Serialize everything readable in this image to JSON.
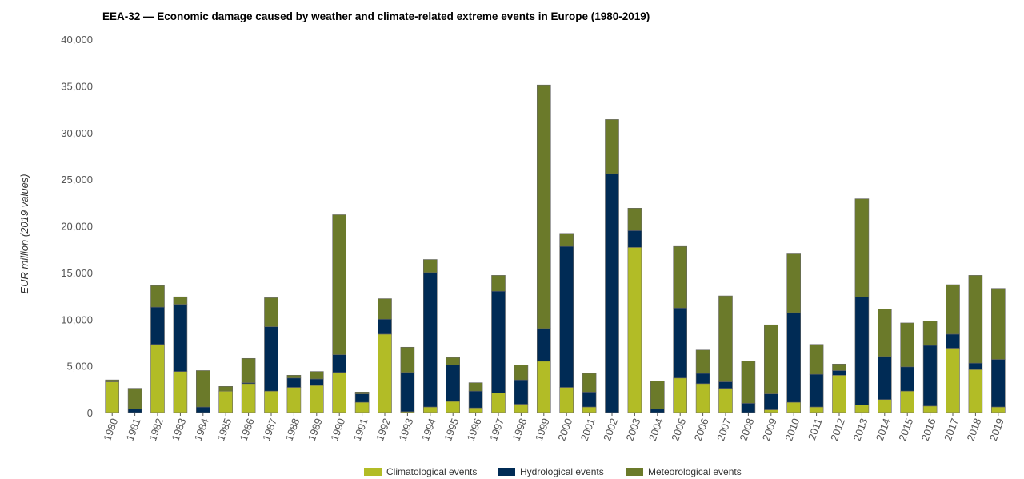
{
  "chart_data": {
    "type": "bar",
    "stacked": true,
    "title": "EEA-32 — Economic damage caused by weather and climate-related extreme events in Europe (1980-2019)",
    "xlabel": "",
    "ylabel": "EUR million (2019 values)",
    "ylim": [
      0,
      40000
    ],
    "yticks": [
      0,
      5000,
      10000,
      15000,
      20000,
      25000,
      30000,
      35000,
      40000
    ],
    "ytick_labels": [
      "0",
      "5,000",
      "10,000",
      "15,000",
      "20,000",
      "25,000",
      "30,000",
      "35,000",
      "40,000"
    ],
    "categories": [
      "1980",
      "1981",
      "1982",
      "1983",
      "1984",
      "1985",
      "1986",
      "1987",
      "1988",
      "1989",
      "1990",
      "1991",
      "1992",
      "1993",
      "1994",
      "1995",
      "1996",
      "1997",
      "1998",
      "1999",
      "2000",
      "2001",
      "2002",
      "2003",
      "2004",
      "2005",
      "2006",
      "2007",
      "2008",
      "2009",
      "2010",
      "2011",
      "2012",
      "2013",
      "2014",
      "2015",
      "2016",
      "2017",
      "2018",
      "2019"
    ],
    "series": [
      {
        "name": "Climatological events",
        "color": "#b2bc26",
        "values": [
          3300,
          0,
          7300,
          4400,
          0,
          2300,
          3100,
          2300,
          2700,
          2900,
          4300,
          1100,
          8400,
          100,
          600,
          1200,
          500,
          2100,
          900,
          5500,
          2700,
          600,
          0,
          17700,
          0,
          3700,
          3100,
          2600,
          0,
          300,
          1100,
          600,
          4000,
          800,
          1400,
          2300,
          700,
          6900,
          4600,
          600
        ]
      },
      {
        "name": "Hydrological events",
        "color": "#002b55",
        "values": [
          0,
          400,
          4000,
          7200,
          600,
          0,
          100,
          6900,
          1000,
          700,
          1900,
          900,
          1600,
          4200,
          14400,
          3900,
          1800,
          10900,
          2600,
          3500,
          15100,
          1600,
          25600,
          1800,
          400,
          7500,
          1100,
          700,
          1000,
          1700,
          9600,
          3500,
          500,
          11600,
          4600,
          2600,
          6500,
          1500,
          700,
          5100
        ]
      },
      {
        "name": "Meteorological events",
        "color": "#6b7a2a",
        "values": [
          200,
          2200,
          2300,
          800,
          3900,
          500,
          2600,
          3100,
          300,
          800,
          15000,
          200,
          2200,
          2700,
          1400,
          800,
          900,
          1700,
          1600,
          26100,
          1400,
          2000,
          5800,
          2400,
          3000,
          6600,
          2500,
          9200,
          4500,
          7400,
          6300,
          3200,
          700,
          10500,
          5100,
          4700,
          2600,
          5300,
          9400,
          7600
        ]
      }
    ]
  }
}
